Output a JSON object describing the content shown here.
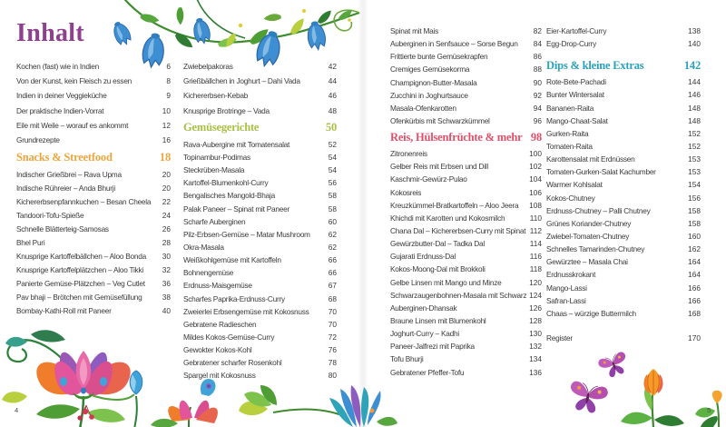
{
  "toc": {
    "title": "Inhalt",
    "left_page_number": "4",
    "right_page_number": "5",
    "columns": [
      {
        "blocks": [
          {
            "type": "entries",
            "items": [
              {
                "label": "Kochen (fast) wie in Indien",
                "page": "6"
              },
              {
                "label": "Von der Kunst, kein Fleisch zu essen",
                "page": "8"
              },
              {
                "label": "Indien in deiner Veggieküche",
                "page": "9"
              },
              {
                "label": "Der praktische Indien-Vorrat",
                "page": "10"
              },
              {
                "label": "Eile mit Weile – worauf es ankommt",
                "page": "12"
              },
              {
                "label": "Grundrezepte",
                "page": "16"
              }
            ]
          },
          {
            "type": "section",
            "label": "Snacks & Streetfood",
            "page": "18",
            "color": "#eca53d"
          },
          {
            "type": "entries",
            "items": [
              {
                "label": "Indischer Grießbrei – Rava Upma",
                "page": "20"
              },
              {
                "label": "Indische Rühreier – Anda Bhurji",
                "page": "20"
              },
              {
                "label": "Kichererbsenpfannkuchen – Besan Cheela",
                "page": "22"
              },
              {
                "label": "Tandoori-Tofu-Spieße",
                "page": "24"
              },
              {
                "label": "Schnelle Blätterteig-Samosas",
                "page": "26"
              },
              {
                "label": "Bhel Puri",
                "page": "28"
              },
              {
                "label": "Knusprige Kartoffelbällchen – Aloo Bonda",
                "page": "30"
              },
              {
                "label": "Knusprige Kartoffelplätzchen – Aloo Tikki",
                "page": "32"
              },
              {
                "label": "Panierte Gemüse-Plätzchen – Veg Cutlet",
                "page": "36"
              },
              {
                "label": "Pav bhaji – Brötchen mit Gemüsefüllung",
                "page": "38"
              },
              {
                "label": "Bombay-Kathi-Roll mit Paneer",
                "page": "40"
              }
            ]
          }
        ]
      },
      {
        "blocks": [
          {
            "type": "entries",
            "items": [
              {
                "label": "Zwiebelpakoras",
                "page": "42"
              },
              {
                "label": "Grießbällchen in Joghurt – Dahi Vada",
                "page": "44"
              },
              {
                "label": "Kichererbsen-Kebab",
                "page": "46"
              },
              {
                "label": "Knusprige Brotringe – Vada",
                "page": "48"
              }
            ]
          },
          {
            "type": "section",
            "label": "Gemüsegerichte",
            "page": "50",
            "color": "#a9bf45"
          },
          {
            "type": "entries",
            "items": [
              {
                "label": "Rava-Aubergine mit Tomatensalat",
                "page": "52"
              },
              {
                "label": "Topinambur-Podimas",
                "page": "54"
              },
              {
                "label": "Steckrüben-Masala",
                "page": "54"
              },
              {
                "label": "Kartoffel-Blumenkohl-Curry",
                "page": "56"
              },
              {
                "label": "Bengalisches Mangold-Bhaja",
                "page": "58"
              },
              {
                "label": "Palak Paneer – Spinat mit Paneer",
                "page": "58"
              },
              {
                "label": "Scharfe Auberginen",
                "page": "60"
              },
              {
                "label": "Pilz-Erbsen-Gemüse – Matar Mushroom",
                "page": "62"
              },
              {
                "label": "Okra-Masala",
                "page": "62"
              },
              {
                "label": "Weißkohlgemüse mit Kartoffeln",
                "page": "66"
              },
              {
                "label": "Bohnengemüse",
                "page": "66"
              },
              {
                "label": "Erdnuss-Maisgemüse",
                "page": "67"
              },
              {
                "label": "Scharfes Paprika-Erdnuss-Curry",
                "page": "68"
              },
              {
                "label": "Zweierlei Erbsengemüse mit Kokosnuss",
                "page": "70"
              },
              {
                "label": "Gebratene Radieschen",
                "page": "70"
              },
              {
                "label": "Mildes Kokos-Gemüse-Curry",
                "page": "72"
              },
              {
                "label": "Gewokter Kokos-Kohl",
                "page": "76"
              },
              {
                "label": "Gebratener scharfer Rosenkohl",
                "page": "78"
              },
              {
                "label": "Spargel mit Kokosnuss",
                "page": "80"
              }
            ]
          }
        ]
      },
      {
        "blocks": [
          {
            "type": "entries",
            "items": [
              {
                "label": "Spinat mit Mais",
                "page": "82"
              },
              {
                "label": "Auberginen in Senfsauce – Sorse Begun",
                "page": "84"
              },
              {
                "label": "Frittierte bunte Gemüsekrapfen",
                "page": "86"
              },
              {
                "label": "Cremiges Gemüsekorma",
                "page": "88"
              },
              {
                "label": "Champignon-Butter-Masala",
                "page": "90"
              },
              {
                "label": "Zucchini in Joghurtsauce",
                "page": "92"
              },
              {
                "label": "Masala-Ofenkarotten",
                "page": "94"
              },
              {
                "label": "Ofenkürbis mit Schwarzkümmel",
                "page": "96"
              }
            ]
          },
          {
            "type": "section",
            "label": "Reis, Hülsenfrüchte & mehr",
            "page": "98",
            "color": "#e34d68"
          },
          {
            "type": "entries",
            "items": [
              {
                "label": "Zitronenreis",
                "page": "100"
              },
              {
                "label": "Gelber Reis mit Erbsen und Dill",
                "page": "102"
              },
              {
                "label": "Kaschmir-Gewürz-Pulao",
                "page": "104"
              },
              {
                "label": "Kokosreis",
                "page": "106"
              },
              {
                "label": "Kreuzkümmel-Bratkartoffeln – Aloo Jeera",
                "page": "108"
              },
              {
                "label": "Khichdi mit Karotten und Kokosmilch",
                "page": "110"
              },
              {
                "label": "Chana Dal – Kichererbsen-Curry mit Spinat",
                "page": "112"
              },
              {
                "label": "Gewürzbutter-Dal – Tadka Dal",
                "page": "114"
              },
              {
                "label": "Gujarati Erdnuss-Dal",
                "page": "116"
              },
              {
                "label": "Kokos-Moong-Dal mit Brokkoli",
                "page": "118"
              },
              {
                "label": "Gelbe Linsen mit Mango und Minze",
                "page": "120"
              },
              {
                "label": "Schwarzaugenbohnen-Masala mit Schwarzkohl",
                "page": "124"
              },
              {
                "label": "Auberginen-Dhansak",
                "page": "126"
              },
              {
                "label": "Braune Linsen mit Blumenkohl",
                "page": "128"
              },
              {
                "label": "Joghurt-Curry – Kadhi",
                "page": "130"
              },
              {
                "label": "Paneer-Jalfrezi mit Paprika",
                "page": "132"
              },
              {
                "label": "Tofu Bhurji",
                "page": "134"
              },
              {
                "label": "Gebratener Pfeffer-Tofu",
                "page": "136"
              }
            ]
          }
        ]
      },
      {
        "blocks": [
          {
            "type": "entries",
            "items": [
              {
                "label": "Eier-Kartoffel-Curry",
                "page": "138"
              },
              {
                "label": "Egg-Drop-Curry",
                "page": "140"
              }
            ]
          },
          {
            "type": "section",
            "label": "Dips & kleine Extras",
            "page": "142",
            "color": "#2aa0bd"
          },
          {
            "type": "entries",
            "items": [
              {
                "label": "Rote-Bete-Pachadi",
                "page": "144"
              },
              {
                "label": "Bunter Wintersalat",
                "page": "146"
              },
              {
                "label": "Bananen-Raita",
                "page": "148"
              },
              {
                "label": "Mango-Chaat-Salat",
                "page": "148"
              },
              {
                "label": "Gurken-Raita",
                "page": "152"
              },
              {
                "label": "Tomaten-Raita",
                "page": "152"
              },
              {
                "label": "Karottensalat mit Erdnüssen",
                "page": "153"
              },
              {
                "label": "Tomaten-Gurken-Salat Kachumber",
                "page": "153"
              },
              {
                "label": "Warmer Kohlsalat",
                "page": "154"
              },
              {
                "label": "Kokos-Chutney",
                "page": "156"
              },
              {
                "label": "Erdnuss-Chutney – Palli Chutney",
                "page": "158"
              },
              {
                "label": "Grünes Koriander-Chutney",
                "page": "158"
              },
              {
                "label": "Zwiebel-Tomaten-Chutney",
                "page": "160"
              },
              {
                "label": "Schnelles Tamarinden-Chutney",
                "page": "162"
              },
              {
                "label": "Gewürztee – Masala Chai",
                "page": "164"
              },
              {
                "label": "Erdnusskrokant",
                "page": "164"
              },
              {
                "label": "Mango-Lassi",
                "page": "166"
              },
              {
                "label": "Safran-Lassi",
                "page": "166"
              },
              {
                "label": "Chaas – würzige Buttermilch",
                "page": "168"
              }
            ]
          },
          {
            "type": "entries",
            "items": [
              {
                "label": "Register",
                "page": "170"
              }
            ]
          }
        ]
      }
    ]
  },
  "colors": {
    "title": "#8e3f8f",
    "body_text": "#3a3a3a",
    "section_snacks": "#eca53d",
    "section_gemuese": "#a9bf45",
    "section_reis": "#e34d68",
    "section_dips": "#2aa0bd"
  },
  "decorations": [
    "bellflower-garland",
    "lotus-flower-cluster",
    "leaf-flower-sprig",
    "butterflies",
    "tulip-flower",
    "corner-sprout"
  ]
}
